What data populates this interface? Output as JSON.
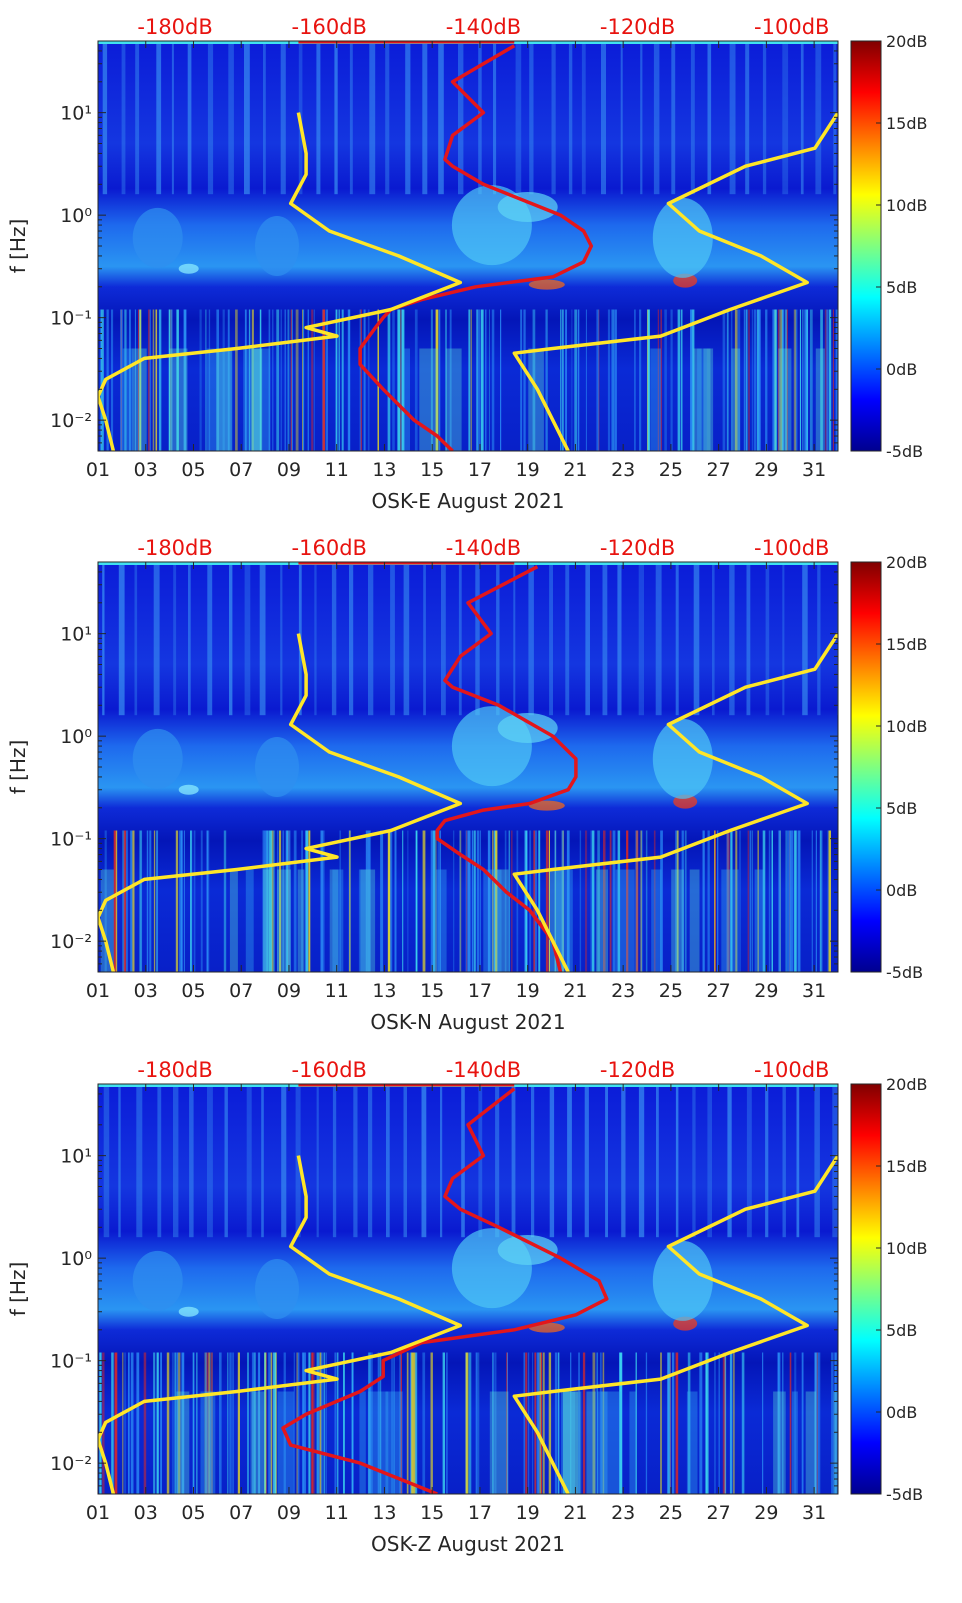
{
  "colors": {
    "spectrogram_low": "#00008f",
    "spectrogram_mid": "#00c8ff",
    "spectrogram_high": "#ff3c00",
    "red_curve": "#e3161b",
    "yellow_curve": "#ffe628",
    "db_label": "#e8130f",
    "axis": "#262626"
  },
  "chart_data": [
    {
      "type": "heatmap",
      "title": "",
      "xlabel": "OSK-E August 2021",
      "ylabel": "f [Hz]",
      "x_ticks": [
        "01",
        "03",
        "05",
        "07",
        "09",
        "11",
        "13",
        "15",
        "17",
        "19",
        "21",
        "23",
        "25",
        "27",
        "29",
        "31"
      ],
      "y_ticks": [
        "10⁻²",
        "10⁻¹",
        "10⁰",
        "10¹"
      ],
      "top_db_ticks": [
        "-180dB",
        "-160dB",
        "-140dB",
        "-120dB",
        "-100dB"
      ],
      "colorbar_ticks": [
        "20dB",
        "15dB",
        "10dB",
        "5dB",
        "0dB",
        "-5dB"
      ],
      "colorbar_range": [
        -5,
        20
      ],
      "xlim": [
        1,
        32
      ],
      "ylim": [
        0.005,
        50
      ],
      "y_scale": "log",
      "top_db_range": [
        -190,
        -94
      ],
      "series": [
        {
          "role": "red PSD curve",
          "color": "#e3161b",
          "points": [
            [
              -136,
              45
            ],
            [
              -144,
              20
            ],
            [
              -140,
              10
            ],
            [
              -144,
              6
            ],
            [
              -145,
              3.5
            ],
            [
              -144,
              3
            ],
            [
              -140,
              2
            ],
            [
              -130,
              1
            ],
            [
              -127,
              0.7
            ],
            [
              -126,
              0.5
            ],
            [
              -127,
              0.35
            ],
            [
              -131,
              0.25
            ],
            [
              -141,
              0.2
            ],
            [
              -148,
              0.15
            ],
            [
              -152,
              0.12
            ],
            [
              -153,
              0.1
            ],
            [
              -154,
              0.08
            ],
            [
              -156,
              0.05
            ],
            [
              -156,
              0.035
            ],
            [
              -153,
              0.02
            ],
            [
              -149,
              0.01
            ],
            [
              -146,
              0.007
            ],
            [
              -144,
              0.005
            ]
          ]
        },
        {
          "role": "yellow noise model (left)",
          "color": "#ffe628",
          "points": [
            [
              -164,
              10
            ],
            [
              -163,
              4
            ],
            [
              -163,
              2.5
            ],
            [
              -165,
              1.3
            ],
            [
              -160,
              0.7
            ],
            [
              -151,
              0.4
            ],
            [
              -143,
              0.22
            ],
            [
              -152,
              0.12
            ],
            [
              -163,
              0.08
            ],
            [
              -159,
              0.066
            ],
            [
              -172,
              0.05
            ],
            [
              -184,
              0.04
            ],
            [
              -189,
              0.025
            ],
            [
              -190,
              0.017
            ],
            [
              -189,
              0.01
            ],
            [
              -188,
              0.005
            ]
          ]
        },
        {
          "role": "yellow noise model (right)",
          "color": "#ffe628",
          "points": [
            [
              -94,
              10
            ],
            [
              -97,
              4.5
            ],
            [
              -106,
              3
            ],
            [
              -116,
              1.3
            ],
            [
              -112,
              0.7
            ],
            [
              -104,
              0.4
            ],
            [
              -98,
              0.22
            ],
            [
              -108,
              0.12
            ],
            [
              -117,
              0.066
            ],
            [
              -131,
              0.05
            ],
            [
              -136,
              0.045
            ],
            [
              -133,
              0.02
            ],
            [
              -129,
              0.005
            ]
          ]
        }
      ]
    },
    {
      "type": "heatmap",
      "title": "",
      "xlabel": "OSK-N August 2021",
      "ylabel": "f [Hz]",
      "x_ticks": [
        "01",
        "03",
        "05",
        "07",
        "09",
        "11",
        "13",
        "15",
        "17",
        "19",
        "21",
        "23",
        "25",
        "27",
        "29",
        "31"
      ],
      "y_ticks": [
        "10⁻²",
        "10⁻¹",
        "10⁰",
        "10¹"
      ],
      "top_db_ticks": [
        "-180dB",
        "-160dB",
        "-140dB",
        "-120dB",
        "-100dB"
      ],
      "colorbar_ticks": [
        "20dB",
        "15dB",
        "10dB",
        "5dB",
        "0dB",
        "-5dB"
      ],
      "colorbar_range": [
        -5,
        20
      ],
      "xlim": [
        1,
        32
      ],
      "ylim": [
        0.005,
        50
      ],
      "y_scale": "log",
      "top_db_range": [
        -190,
        -94
      ],
      "series": [
        {
          "role": "red PSD curve",
          "color": "#e3161b",
          "points": [
            [
              -133,
              45
            ],
            [
              -142,
              20
            ],
            [
              -139,
              10
            ],
            [
              -143,
              6
            ],
            [
              -145,
              3.5
            ],
            [
              -144,
              3
            ],
            [
              -138,
              2
            ],
            [
              -131,
              1
            ],
            [
              -128,
              0.6
            ],
            [
              -128,
              0.4
            ],
            [
              -129,
              0.3
            ],
            [
              -134,
              0.22
            ],
            [
              -140,
              0.19
            ],
            [
              -145,
              0.15
            ],
            [
              -146,
              0.12
            ],
            [
              -146,
              0.1
            ],
            [
              -143,
              0.07
            ],
            [
              -140,
              0.05
            ],
            [
              -137,
              0.03
            ],
            [
              -134,
              0.02
            ],
            [
              -131,
              0.01
            ],
            [
              -130,
              0.005
            ]
          ]
        },
        {
          "role": "yellow noise model (left)",
          "color": "#ffe628",
          "points": [
            [
              -164,
              10
            ],
            [
              -163,
              4
            ],
            [
              -163,
              2.5
            ],
            [
              -165,
              1.3
            ],
            [
              -160,
              0.7
            ],
            [
              -151,
              0.4
            ],
            [
              -143,
              0.22
            ],
            [
              -152,
              0.12
            ],
            [
              -163,
              0.08
            ],
            [
              -159,
              0.066
            ],
            [
              -172,
              0.05
            ],
            [
              -184,
              0.04
            ],
            [
              -189,
              0.025
            ],
            [
              -190,
              0.017
            ],
            [
              -189,
              0.01
            ],
            [
              -188,
              0.005
            ]
          ]
        },
        {
          "role": "yellow noise model (right)",
          "color": "#ffe628",
          "points": [
            [
              -94,
              10
            ],
            [
              -97,
              4.5
            ],
            [
              -106,
              3
            ],
            [
              -116,
              1.3
            ],
            [
              -112,
              0.7
            ],
            [
              -104,
              0.4
            ],
            [
              -98,
              0.22
            ],
            [
              -108,
              0.12
            ],
            [
              -117,
              0.066
            ],
            [
              -131,
              0.05
            ],
            [
              -136,
              0.045
            ],
            [
              -133,
              0.02
            ],
            [
              -129,
              0.005
            ]
          ]
        }
      ]
    },
    {
      "type": "heatmap",
      "title": "",
      "xlabel": "OSK-Z August 2021",
      "ylabel": "f [Hz]",
      "x_ticks": [
        "01",
        "03",
        "05",
        "07",
        "09",
        "11",
        "13",
        "15",
        "17",
        "19",
        "21",
        "23",
        "25",
        "27",
        "29",
        "31"
      ],
      "y_ticks": [
        "10⁻²",
        "10⁻¹",
        "10⁰",
        "10¹"
      ],
      "top_db_ticks": [
        "-180dB",
        "-160dB",
        "-140dB",
        "-120dB",
        "-100dB"
      ],
      "colorbar_ticks": [
        "20dB",
        "15dB",
        "10dB",
        "5dB",
        "0dB",
        "-5dB"
      ],
      "colorbar_range": [
        -5,
        20
      ],
      "xlim": [
        1,
        32
      ],
      "ylim": [
        0.005,
        50
      ],
      "y_scale": "log",
      "top_db_range": [
        -190,
        -94
      ],
      "series": [
        {
          "role": "red PSD curve",
          "color": "#e3161b",
          "points": [
            [
              -136,
              45
            ],
            [
              -142,
              20
            ],
            [
              -140,
              10
            ],
            [
              -144,
              6
            ],
            [
              -145,
              4
            ],
            [
              -143,
              3
            ],
            [
              -138,
              2
            ],
            [
              -130,
              1
            ],
            [
              -125,
              0.6
            ],
            [
              -124,
              0.4
            ],
            [
              -128,
              0.28
            ],
            [
              -136,
              0.2
            ],
            [
              -148,
              0.15
            ],
            [
              -153,
              0.1
            ],
            [
              -153,
              0.07
            ],
            [
              -156,
              0.05
            ],
            [
              -163,
              0.03
            ],
            [
              -166,
              0.022
            ],
            [
              -165,
              0.015
            ],
            [
              -156,
              0.01
            ],
            [
              -146,
              0.005
            ]
          ]
        },
        {
          "role": "yellow noise model (left)",
          "color": "#ffe628",
          "points": [
            [
              -164,
              10
            ],
            [
              -163,
              4
            ],
            [
              -163,
              2.5
            ],
            [
              -165,
              1.3
            ],
            [
              -160,
              0.7
            ],
            [
              -151,
              0.4
            ],
            [
              -143,
              0.22
            ],
            [
              -152,
              0.12
            ],
            [
              -163,
              0.08
            ],
            [
              -159,
              0.066
            ],
            [
              -172,
              0.05
            ],
            [
              -184,
              0.04
            ],
            [
              -189,
              0.025
            ],
            [
              -190,
              0.017
            ],
            [
              -189,
              0.01
            ],
            [
              -188,
              0.005
            ]
          ]
        },
        {
          "role": "yellow noise model (right)",
          "color": "#ffe628",
          "points": [
            [
              -94,
              10
            ],
            [
              -97,
              4.5
            ],
            [
              -106,
              3
            ],
            [
              -116,
              1.3
            ],
            [
              -112,
              0.7
            ],
            [
              -104,
              0.4
            ],
            [
              -98,
              0.22
            ],
            [
              -108,
              0.12
            ],
            [
              -117,
              0.066
            ],
            [
              -131,
              0.05
            ],
            [
              -136,
              0.045
            ],
            [
              -133,
              0.02
            ],
            [
              -129,
              0.005
            ]
          ]
        }
      ]
    }
  ]
}
